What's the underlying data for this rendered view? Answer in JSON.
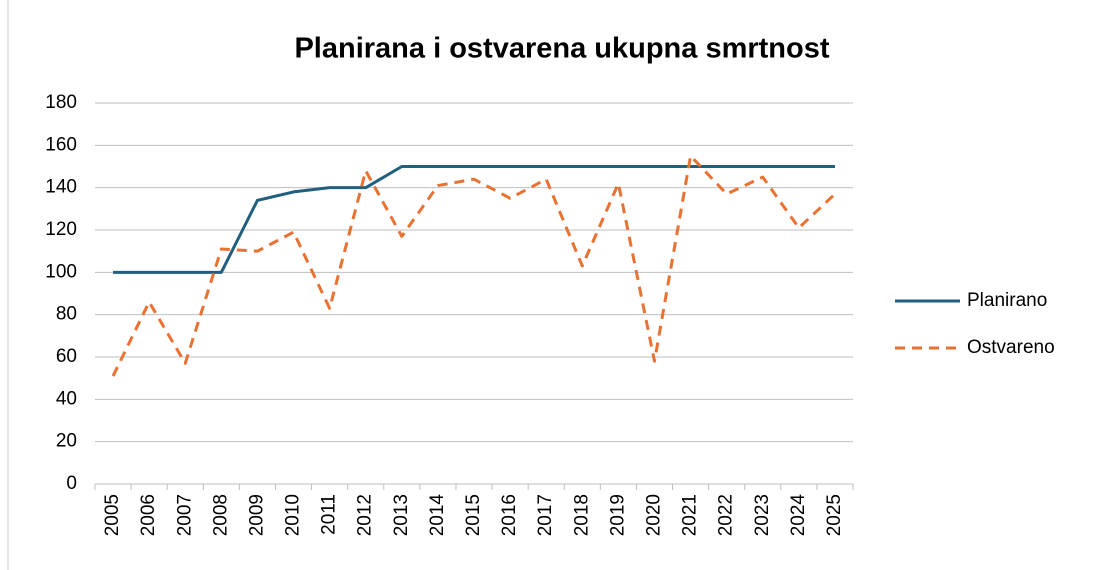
{
  "chart_data": {
    "type": "line",
    "title": "Planirana i ostvarena ukupna smrtnost",
    "categories": [
      "2005",
      "2006",
      "2007",
      "2008",
      "2009",
      "2010",
      "2011",
      "2012",
      "2013",
      "2014",
      "2015",
      "2016",
      "2017",
      "2018",
      "2019",
      "2020",
      "2021",
      "2022",
      "2023",
      "2024",
      "2025"
    ],
    "series": [
      {
        "name": "Planirano",
        "color": "#215f7e",
        "dashed": false,
        "values": [
          100,
          100,
          100,
          100,
          134,
          138,
          140,
          140,
          150,
          150,
          150,
          150,
          150,
          150,
          150,
          150,
          150,
          150,
          150,
          150,
          150
        ]
      },
      {
        "name": "Ostvareno",
        "color": "#e97132",
        "dashed": true,
        "values": [
          51,
          86,
          57,
          111,
          110,
          119,
          83,
          148,
          117,
          141,
          144,
          135,
          144,
          103,
          142,
          58,
          155,
          137,
          145,
          121,
          137
        ]
      }
    ],
    "ylim": [
      0,
      180
    ],
    "yticks": [
      0,
      20,
      40,
      60,
      80,
      100,
      120,
      140,
      160,
      180
    ],
    "grid": true,
    "legend": "right"
  }
}
